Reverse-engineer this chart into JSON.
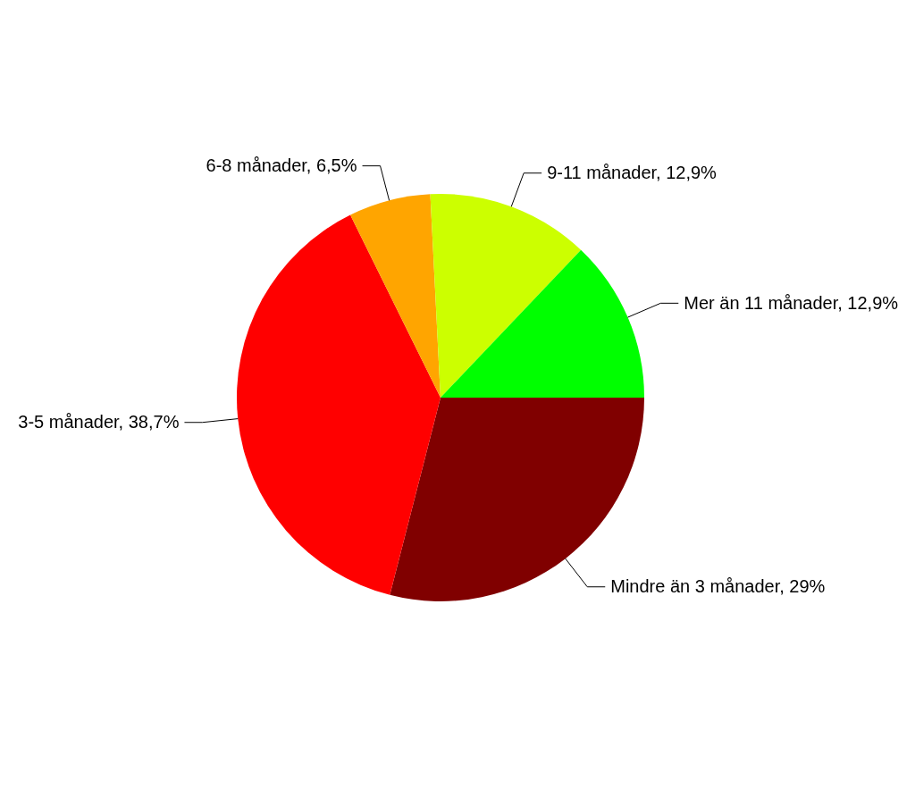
{
  "chart_data": {
    "type": "pie",
    "categories": [
      "Mindre än 3 månader",
      "3-5 månader",
      "6-8 månader",
      "9-11 månader",
      "Mer än 11 månader"
    ],
    "values": [
      29,
      38.7,
      6.5,
      12.9,
      12.9
    ],
    "value_labels": [
      "29%",
      "38,7%",
      "6,5%",
      "12,9%",
      "12,9%"
    ],
    "colors": [
      "#800000",
      "#ff0000",
      "#ffa500",
      "#ccff00",
      "#00ff00"
    ],
    "legend": false
  }
}
